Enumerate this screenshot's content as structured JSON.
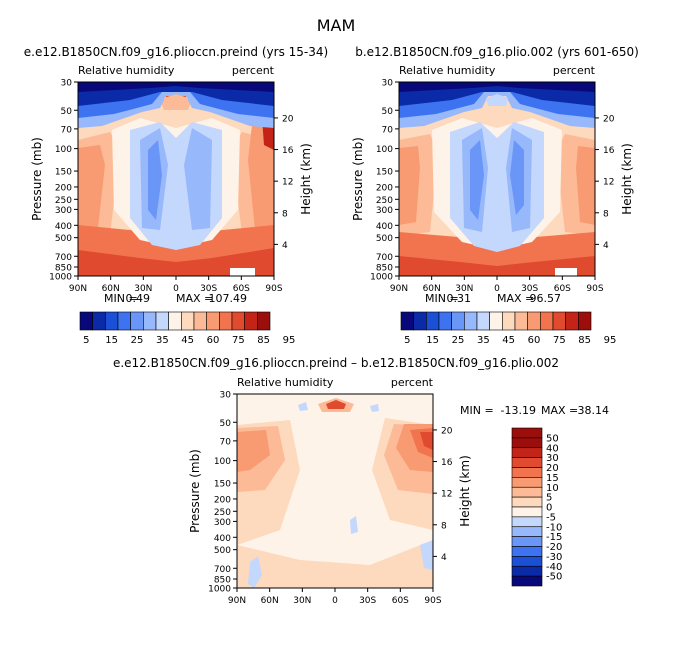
{
  "figure_title": "MAM",
  "colors": {
    "rh_scale": [
      "#08087a",
      "#0b2aa8",
      "#1a4fd6",
      "#3d73f0",
      "#6a96f8",
      "#97b8fb",
      "#c4d7fd",
      "#fef3e8",
      "#fdd9bd",
      "#fcbb96",
      "#f89a72",
      "#f2744f",
      "#e04a2e",
      "#c42418",
      "#9c0e0c"
    ],
    "diff_scale": [
      "#08087a",
      "#0b2aa8",
      "#1a4fd6",
      "#3d73f0",
      "#6a96f8",
      "#97b8fb",
      "#c4d7fd",
      "#fef3e8",
      "#fdd9bd",
      "#fcbb96",
      "#f89a72",
      "#f2744f",
      "#e04a2e",
      "#c42418",
      "#9c0e0c"
    ]
  },
  "chart_data": [
    {
      "type": "heatmap",
      "title": "e.e12.B1850CN.f09_g16.plioccn.preind (yrs 15-34)",
      "left_label": "Relative humidity",
      "right_label": "percent",
      "ylabel": "Pressure (mb)",
      "y2label": "Height (km)",
      "x_ticks": [
        "90N",
        "60N",
        "30N",
        "0",
        "30S",
        "60S",
        "90S"
      ],
      "y_ticks": [
        "30",
        "50",
        "70",
        "100",
        "150",
        "200",
        "250",
        "300",
        "400",
        "500",
        "700",
        "850",
        "1000"
      ],
      "y2_ticks": [
        "20",
        "16",
        "12",
        "8",
        "4"
      ],
      "min_label": "MIN =",
      "min_value": "0.49",
      "max_label": "MAX =",
      "max_value": "107.49",
      "colorbar_labels": [
        "5",
        "15",
        "25",
        "35",
        "45",
        "60",
        "75",
        "85",
        "95"
      ],
      "fields": {
        "surface": 90,
        "trop_ridge": 60,
        "dry_core": 25,
        "upper_tropics": 75,
        "tropopause_dry": 10,
        "polar_upper": 85
      }
    },
    {
      "type": "heatmap",
      "title": "b.e12.B1850CN.f09_g16.plio.002 (yrs 601-650)",
      "left_label": "Relative humidity",
      "right_label": "percent",
      "ylabel": "Pressure (mb)",
      "y2label": "Height (km)",
      "x_ticks": [
        "90N",
        "60N",
        "30N",
        "0",
        "30S",
        "60S",
        "90S"
      ],
      "y_ticks": [
        "30",
        "50",
        "70",
        "100",
        "150",
        "200",
        "250",
        "300",
        "400",
        "500",
        "700",
        "850",
        "1000"
      ],
      "y2_ticks": [
        "20",
        "16",
        "12",
        "8",
        "4"
      ],
      "min_label": "MIN =",
      "min_value": "0.31",
      "max_label": "MAX =",
      "max_value": "96.57",
      "colorbar_labels": [
        "5",
        "15",
        "25",
        "35",
        "45",
        "60",
        "75",
        "85",
        "95"
      ],
      "fields": {
        "surface": 85,
        "trop_ridge": 55,
        "dry_core": 22,
        "upper_tropics": 62,
        "tropopause_dry": 8,
        "polar_upper": 65
      }
    },
    {
      "type": "heatmap",
      "title": "e.e12.B1850CN.f09_g16.plioccn.preind – b.e12.B1850CN.f09_g16.plio.002",
      "left_label": "Relative humidity",
      "right_label": "percent",
      "ylabel": "Pressure (mb)",
      "y2label": "Height (km)",
      "x_ticks": [
        "90N",
        "60N",
        "30N",
        "0",
        "30S",
        "60S",
        "90S"
      ],
      "y_ticks": [
        "30",
        "50",
        "70",
        "100",
        "150",
        "200",
        "250",
        "300",
        "400",
        "500",
        "700",
        "850",
        "1000"
      ],
      "y2_ticks": [
        "20",
        "16",
        "12",
        "8",
        "4"
      ],
      "min_label": "MIN =",
      "min_value": "-13.19",
      "max_label": "MAX =",
      "max_value": "38.14",
      "colorbar_labels": [
        "50",
        "40",
        "30",
        "20",
        "15",
        "10",
        "5",
        "0",
        "-5",
        "-10",
        "-15",
        "-20",
        "-30",
        "-40",
        "-50"
      ]
    }
  ]
}
